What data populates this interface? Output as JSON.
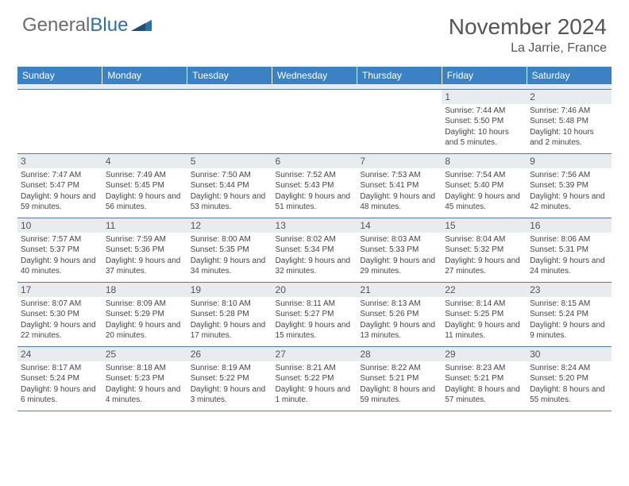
{
  "logo": {
    "text1": "General",
    "text2": "Blue"
  },
  "title": "November 2024",
  "location": "La Jarrie, France",
  "colors": {
    "header_bg": "#3b82c4",
    "header_text": "#ffffff",
    "daynum_bg": "#e9ecef",
    "border": "#5a7a9a",
    "logo_gray": "#6b6b6b",
    "logo_blue": "#2f6fa8"
  },
  "weekdays": [
    "Sunday",
    "Monday",
    "Tuesday",
    "Wednesday",
    "Thursday",
    "Friday",
    "Saturday"
  ],
  "weeks": [
    [
      {
        "n": "",
        "sr": "",
        "ss": "",
        "dl": ""
      },
      {
        "n": "",
        "sr": "",
        "ss": "",
        "dl": ""
      },
      {
        "n": "",
        "sr": "",
        "ss": "",
        "dl": ""
      },
      {
        "n": "",
        "sr": "",
        "ss": "",
        "dl": ""
      },
      {
        "n": "",
        "sr": "",
        "ss": "",
        "dl": ""
      },
      {
        "n": "1",
        "sr": "Sunrise: 7:44 AM",
        "ss": "Sunset: 5:50 PM",
        "dl": "Daylight: 10 hours and 5 minutes."
      },
      {
        "n": "2",
        "sr": "Sunrise: 7:46 AM",
        "ss": "Sunset: 5:48 PM",
        "dl": "Daylight: 10 hours and 2 minutes."
      }
    ],
    [
      {
        "n": "3",
        "sr": "Sunrise: 7:47 AM",
        "ss": "Sunset: 5:47 PM",
        "dl": "Daylight: 9 hours and 59 minutes."
      },
      {
        "n": "4",
        "sr": "Sunrise: 7:49 AM",
        "ss": "Sunset: 5:45 PM",
        "dl": "Daylight: 9 hours and 56 minutes."
      },
      {
        "n": "5",
        "sr": "Sunrise: 7:50 AM",
        "ss": "Sunset: 5:44 PM",
        "dl": "Daylight: 9 hours and 53 minutes."
      },
      {
        "n": "6",
        "sr": "Sunrise: 7:52 AM",
        "ss": "Sunset: 5:43 PM",
        "dl": "Daylight: 9 hours and 51 minutes."
      },
      {
        "n": "7",
        "sr": "Sunrise: 7:53 AM",
        "ss": "Sunset: 5:41 PM",
        "dl": "Daylight: 9 hours and 48 minutes."
      },
      {
        "n": "8",
        "sr": "Sunrise: 7:54 AM",
        "ss": "Sunset: 5:40 PM",
        "dl": "Daylight: 9 hours and 45 minutes."
      },
      {
        "n": "9",
        "sr": "Sunrise: 7:56 AM",
        "ss": "Sunset: 5:39 PM",
        "dl": "Daylight: 9 hours and 42 minutes."
      }
    ],
    [
      {
        "n": "10",
        "sr": "Sunrise: 7:57 AM",
        "ss": "Sunset: 5:37 PM",
        "dl": "Daylight: 9 hours and 40 minutes."
      },
      {
        "n": "11",
        "sr": "Sunrise: 7:59 AM",
        "ss": "Sunset: 5:36 PM",
        "dl": "Daylight: 9 hours and 37 minutes."
      },
      {
        "n": "12",
        "sr": "Sunrise: 8:00 AM",
        "ss": "Sunset: 5:35 PM",
        "dl": "Daylight: 9 hours and 34 minutes."
      },
      {
        "n": "13",
        "sr": "Sunrise: 8:02 AM",
        "ss": "Sunset: 5:34 PM",
        "dl": "Daylight: 9 hours and 32 minutes."
      },
      {
        "n": "14",
        "sr": "Sunrise: 8:03 AM",
        "ss": "Sunset: 5:33 PM",
        "dl": "Daylight: 9 hours and 29 minutes."
      },
      {
        "n": "15",
        "sr": "Sunrise: 8:04 AM",
        "ss": "Sunset: 5:32 PM",
        "dl": "Daylight: 9 hours and 27 minutes."
      },
      {
        "n": "16",
        "sr": "Sunrise: 8:06 AM",
        "ss": "Sunset: 5:31 PM",
        "dl": "Daylight: 9 hours and 24 minutes."
      }
    ],
    [
      {
        "n": "17",
        "sr": "Sunrise: 8:07 AM",
        "ss": "Sunset: 5:30 PM",
        "dl": "Daylight: 9 hours and 22 minutes."
      },
      {
        "n": "18",
        "sr": "Sunrise: 8:09 AM",
        "ss": "Sunset: 5:29 PM",
        "dl": "Daylight: 9 hours and 20 minutes."
      },
      {
        "n": "19",
        "sr": "Sunrise: 8:10 AM",
        "ss": "Sunset: 5:28 PM",
        "dl": "Daylight: 9 hours and 17 minutes."
      },
      {
        "n": "20",
        "sr": "Sunrise: 8:11 AM",
        "ss": "Sunset: 5:27 PM",
        "dl": "Daylight: 9 hours and 15 minutes."
      },
      {
        "n": "21",
        "sr": "Sunrise: 8:13 AM",
        "ss": "Sunset: 5:26 PM",
        "dl": "Daylight: 9 hours and 13 minutes."
      },
      {
        "n": "22",
        "sr": "Sunrise: 8:14 AM",
        "ss": "Sunset: 5:25 PM",
        "dl": "Daylight: 9 hours and 11 minutes."
      },
      {
        "n": "23",
        "sr": "Sunrise: 8:15 AM",
        "ss": "Sunset: 5:24 PM",
        "dl": "Daylight: 9 hours and 9 minutes."
      }
    ],
    [
      {
        "n": "24",
        "sr": "Sunrise: 8:17 AM",
        "ss": "Sunset: 5:24 PM",
        "dl": "Daylight: 9 hours and 6 minutes."
      },
      {
        "n": "25",
        "sr": "Sunrise: 8:18 AM",
        "ss": "Sunset: 5:23 PM",
        "dl": "Daylight: 9 hours and 4 minutes."
      },
      {
        "n": "26",
        "sr": "Sunrise: 8:19 AM",
        "ss": "Sunset: 5:22 PM",
        "dl": "Daylight: 9 hours and 3 minutes."
      },
      {
        "n": "27",
        "sr": "Sunrise: 8:21 AM",
        "ss": "Sunset: 5:22 PM",
        "dl": "Daylight: 9 hours and 1 minute."
      },
      {
        "n": "28",
        "sr": "Sunrise: 8:22 AM",
        "ss": "Sunset: 5:21 PM",
        "dl": "Daylight: 8 hours and 59 minutes."
      },
      {
        "n": "29",
        "sr": "Sunrise: 8:23 AM",
        "ss": "Sunset: 5:21 PM",
        "dl": "Daylight: 8 hours and 57 minutes."
      },
      {
        "n": "30",
        "sr": "Sunrise: 8:24 AM",
        "ss": "Sunset: 5:20 PM",
        "dl": "Daylight: 8 hours and 55 minutes."
      }
    ]
  ]
}
